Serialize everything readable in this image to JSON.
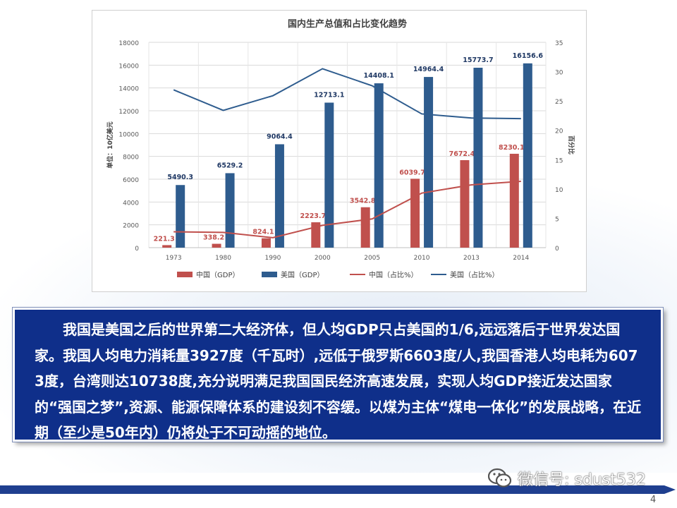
{
  "chart_data": {
    "type": "bar",
    "title": "国内生产总值和占比变化趋势",
    "categories": [
      "1973",
      "1980",
      "1990",
      "2000",
      "2005",
      "2010",
      "2013",
      "2014"
    ],
    "ylabel": "单位：10亿美元",
    "y2label": "百分比",
    "ylim": [
      0,
      18000
    ],
    "y2lim": [
      0,
      35
    ],
    "yticks": [
      "0",
      "2000",
      "4000",
      "6000",
      "8000",
      "10000",
      "12000",
      "14000",
      "16000",
      "18000"
    ],
    "y2ticks": [
      "0",
      "5",
      "10",
      "15",
      "20",
      "25",
      "30",
      "35"
    ],
    "legend_position": "bottom",
    "series": [
      {
        "name": "中国（GDP）",
        "kind": "bar",
        "axis": "left",
        "color": "#c0504d",
        "values": [
          221.3,
          338.2,
          824.1,
          2223.7,
          3542.8,
          6039.7,
          7672.4,
          8230.1
        ],
        "labels": [
          "221.3",
          "338.2",
          "824.1",
          "2223.7",
          "3542.8",
          "6039.7",
          "7672.4",
          "8230.1"
        ]
      },
      {
        "name": "美国（GDP）",
        "kind": "bar",
        "axis": "left",
        "color": "#2e5c8e",
        "values": [
          5490.3,
          6529.2,
          9064.4,
          12713.1,
          14408.1,
          14964.4,
          15773.7,
          16156.6
        ],
        "labels": [
          "5490.3",
          "6529.2",
          "9064.4",
          "12713.1",
          "14408.1",
          "14964.4",
          "15773.7",
          "16156.6"
        ]
      },
      {
        "name": "中国（占比%）",
        "kind": "line",
        "axis": "right",
        "color": "#c0504d",
        "values": [
          2.7,
          2.6,
          1.7,
          3.8,
          4.9,
          9.3,
          10.7,
          11.3
        ]
      },
      {
        "name": "美国（占比%）",
        "kind": "line",
        "axis": "right",
        "color": "#2e5c8e",
        "values": [
          26.9,
          23.4,
          25.9,
          30.5,
          27.6,
          22.8,
          22.1,
          22.0
        ]
      }
    ]
  },
  "body_text": "我国是美国之后的世界第二大经济体，但人均GDP只占美国的1/6,远远落后于世界发达国家。我国人均电力消耗量3927度（千瓦时）,远低于俄罗斯6603度/人,我国香港人均电耗为6073度，台湾则达10738度,充分说明满足我国国民经济高速发展，实现人均GDP接近发达国家的“强国之梦”,资源、能源保障体系的建设刻不容缓。以煤为主体“煤电一体化”的发展战略，在近期（至少是50年内）仍将处于不可动摇的地位。",
  "watermark": "微信号: sdust532",
  "page_number": "4",
  "colors": {
    "china": "#c0504d",
    "usa": "#2e5c8e",
    "text_box": "#0f2f8a",
    "arrow": "#1f3f8f"
  }
}
